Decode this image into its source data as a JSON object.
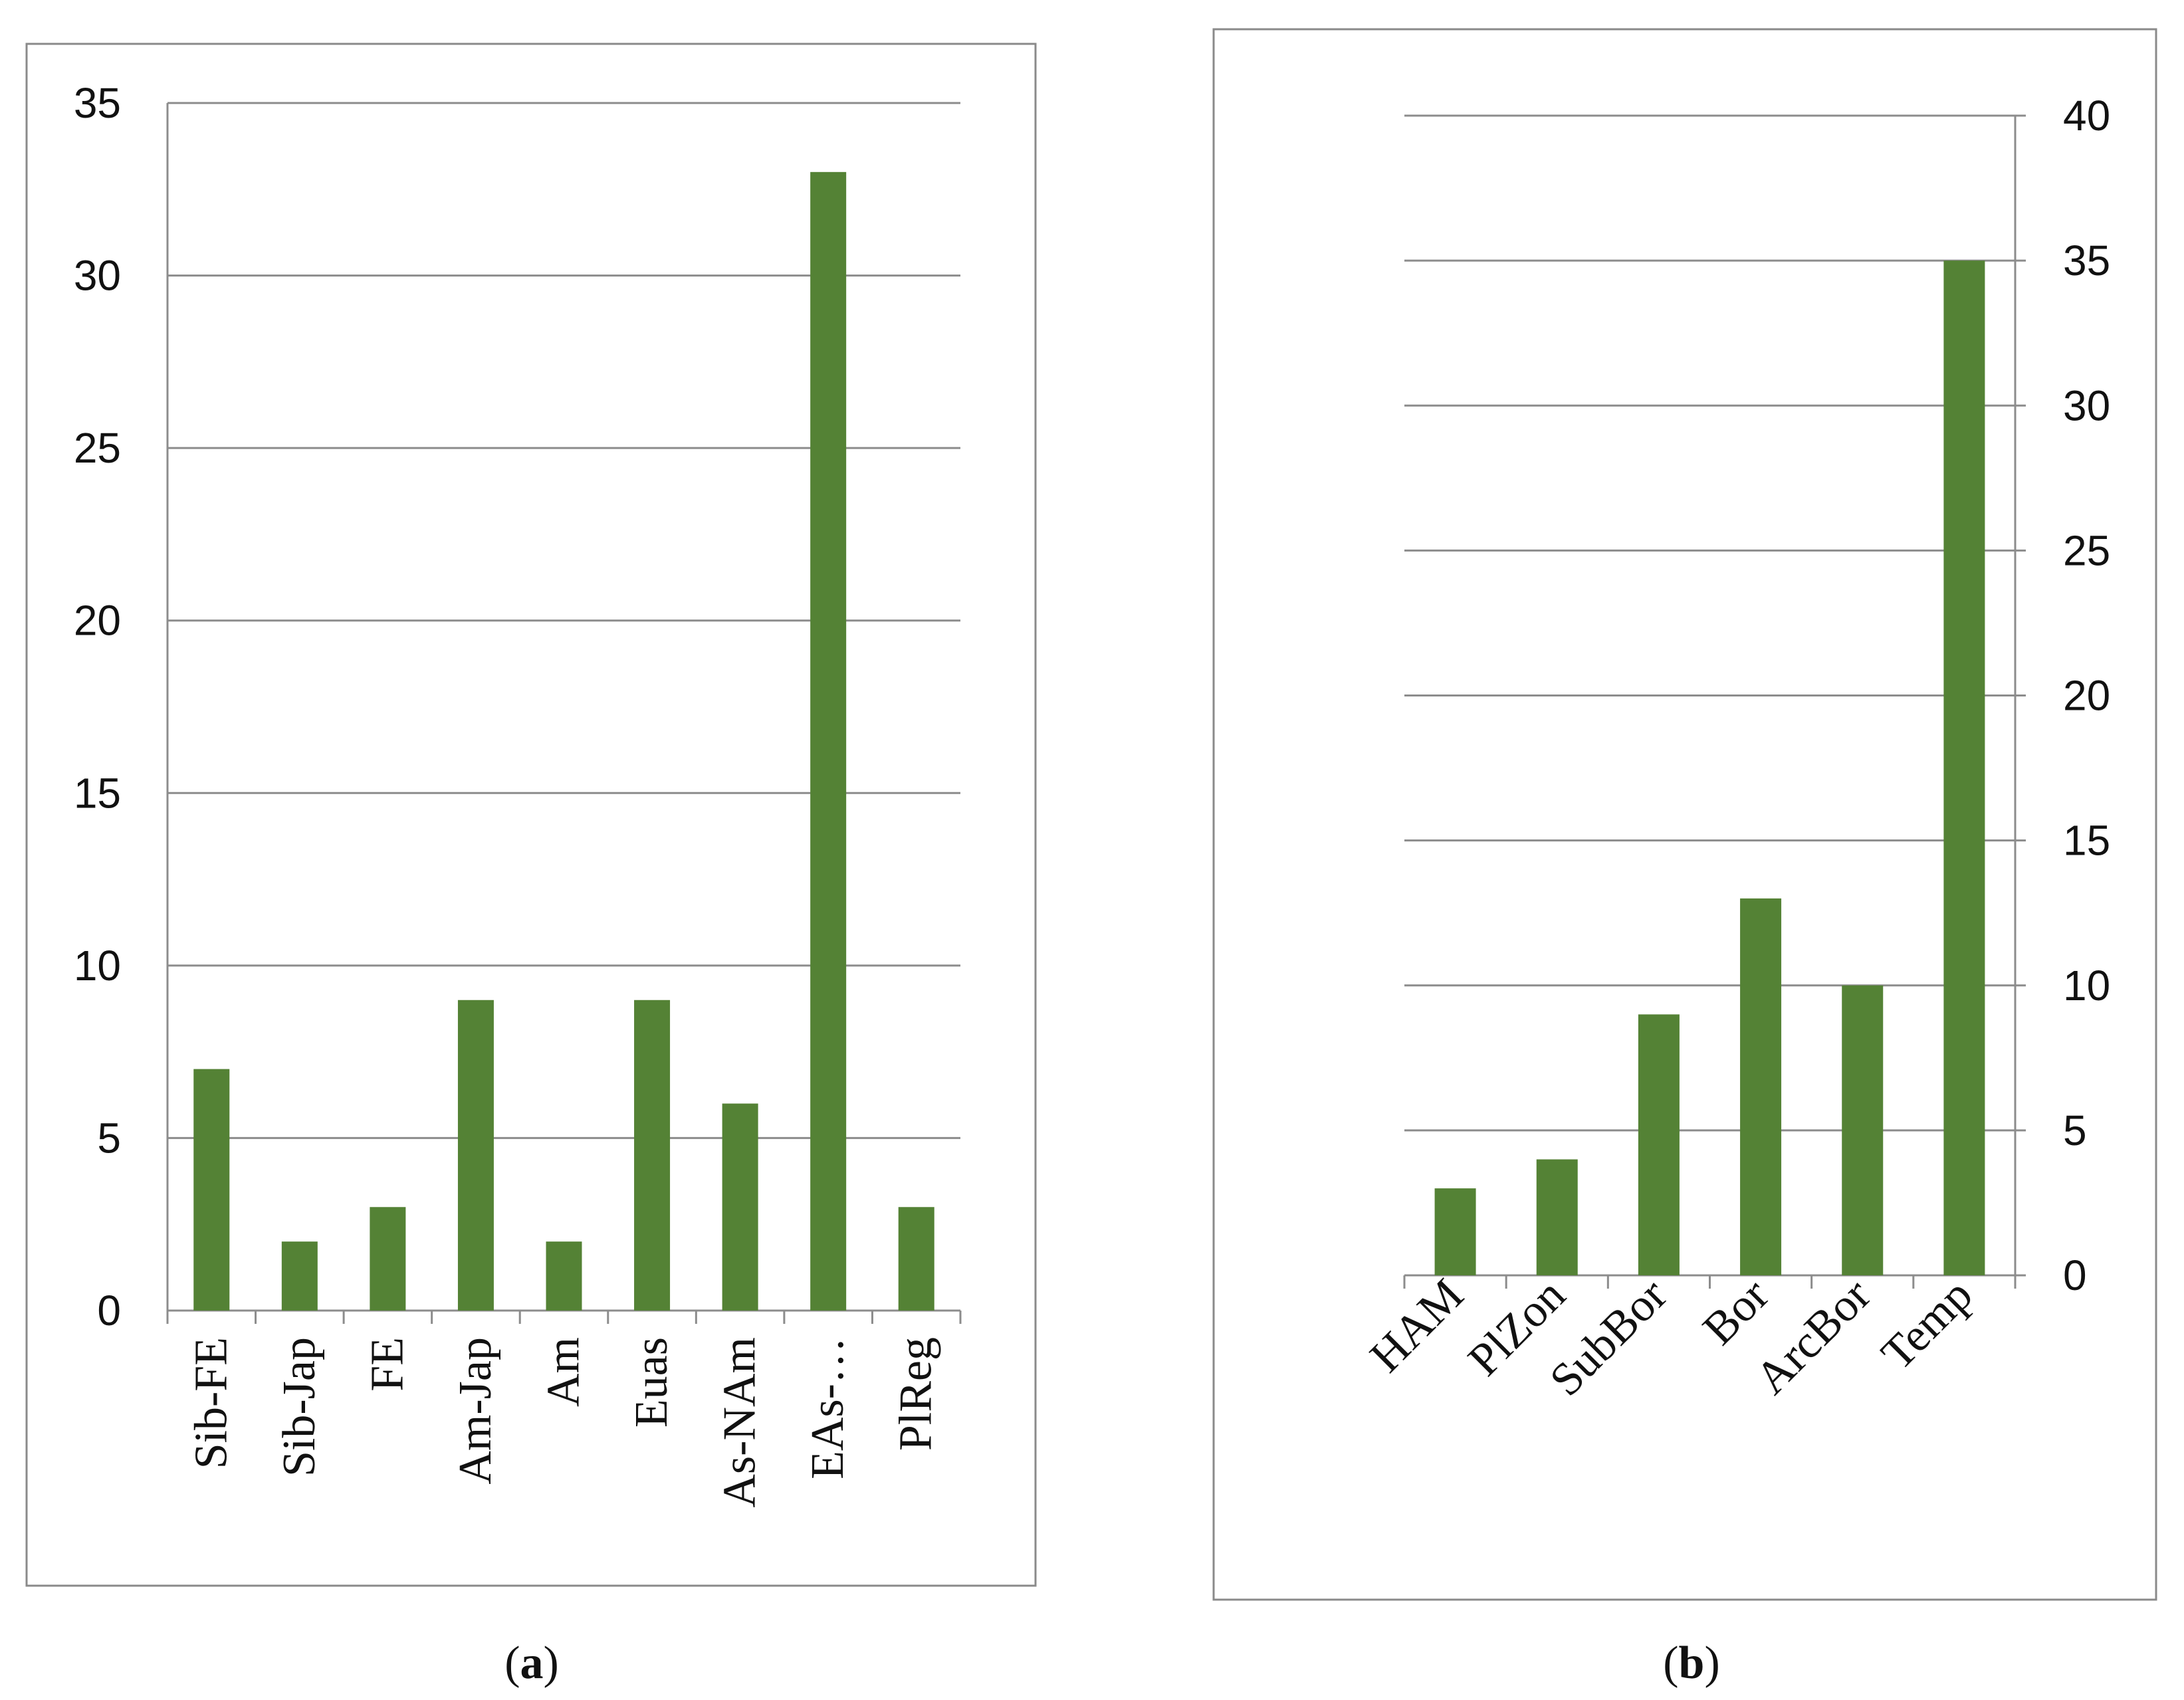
{
  "colors": {
    "bar": "#548235",
    "grid": "#8c8c8c",
    "frame": "#8a8a8a"
  },
  "chart_data": [
    {
      "panel": "a",
      "type": "bar",
      "title": "",
      "xlabel": "",
      "ylabel": "",
      "categories": [
        "Sib-FE",
        "Sib-Jap",
        "FE",
        "Am-Jap",
        "Am",
        "Euas",
        "As-NAm",
        "EAs-…",
        "PlReg"
      ],
      "values": [
        7,
        2,
        3,
        9,
        2,
        9,
        6,
        33,
        3
      ],
      "ylim": [
        0,
        35
      ],
      "yticks": [
        0,
        5,
        10,
        15,
        20,
        25,
        30,
        35
      ],
      "y_axis_side": "left",
      "grid": true,
      "legend": "none"
    },
    {
      "panel": "b",
      "type": "bar",
      "title": "",
      "xlabel": "",
      "ylabel": "",
      "categories": [
        "HAM",
        "PlZon",
        "SubBor",
        "Bor",
        "ArcBor",
        "Temp"
      ],
      "values": [
        3,
        4,
        9,
        13,
        10,
        35
      ],
      "ylim": [
        0,
        40
      ],
      "yticks": [
        0,
        5,
        10,
        15,
        20,
        25,
        30,
        35,
        40
      ],
      "y_axis_side": "right",
      "grid": true,
      "legend": "none"
    }
  ],
  "captions": [
    {
      "open": "(",
      "letter": "a",
      "close": ")"
    },
    {
      "open": "(",
      "letter": "b",
      "close": ")"
    }
  ]
}
